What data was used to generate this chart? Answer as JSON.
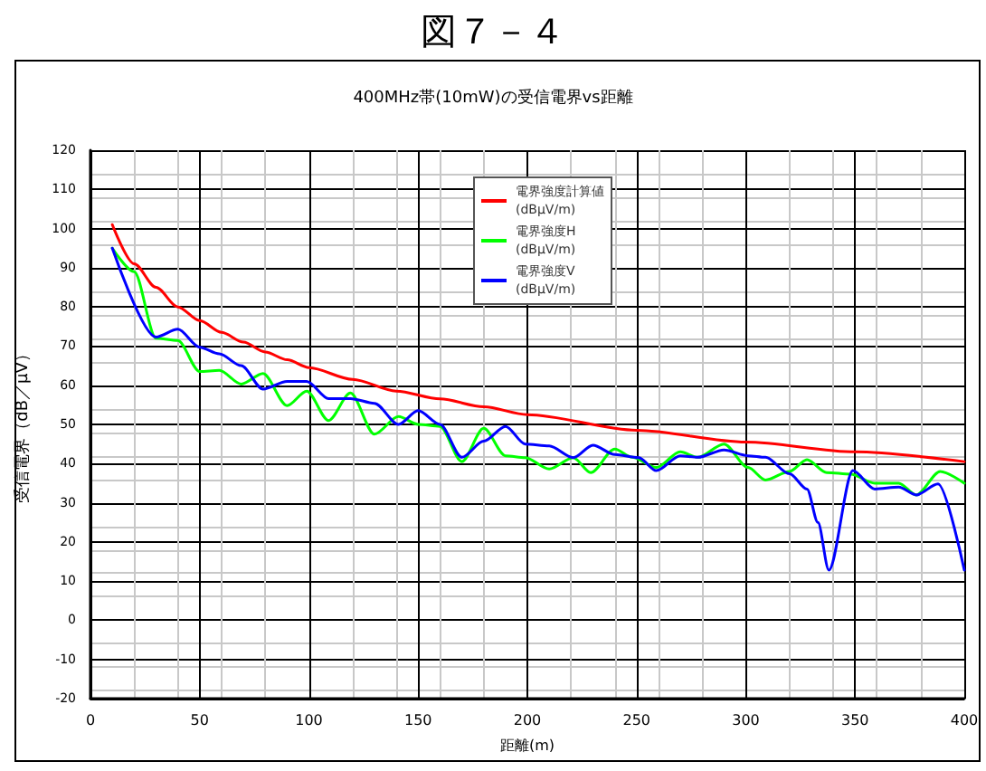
{
  "chart_data": {
    "type": "line",
    "title": "図７－４",
    "subtitle": "400MHz帯(10mW)の受信電界vs距離",
    "xlabel": "距離(m)",
    "ylabel": "受信電界（dB／μV）",
    "xlim": [
      0,
      400
    ],
    "xticks": [
      0,
      50,
      100,
      150,
      200,
      250,
      300,
      350,
      400
    ],
    "ylim": [
      -20,
      120
    ],
    "yticks": [
      -20,
      -10,
      0,
      10,
      20,
      30,
      40,
      50,
      60,
      70,
      80,
      90,
      100,
      110,
      120
    ],
    "grid": true,
    "legend": "top",
    "marker": "none",
    "line_style": "solid",
    "series": [
      {
        "name": "電界強度計算値\n(dBμV/m)",
        "color": "#ff0000",
        "x": [
          10,
          20,
          30,
          40,
          50,
          60,
          70,
          80,
          90,
          100,
          120,
          140,
          160,
          180,
          200,
          250,
          300,
          350,
          400
        ],
        "values": [
          101,
          91,
          85,
          80,
          76.5,
          73.5,
          71,
          68.5,
          66.5,
          64.5,
          61.5,
          58.5,
          56.5,
          54.5,
          52.5,
          48.5,
          45.5,
          43,
          40.5
        ]
      },
      {
        "name": "電界強度H\n(dBμV/m)",
        "color": "#00ff00",
        "x": [
          10,
          20,
          30,
          40,
          50,
          59,
          69,
          79,
          90,
          99,
          109,
          119,
          130,
          141,
          150,
          160,
          170,
          180,
          190,
          199,
          210,
          221,
          229,
          240,
          248,
          259,
          270,
          278,
          290,
          301,
          309,
          320,
          328,
          337,
          348,
          359,
          370,
          378,
          389,
          400
        ],
        "values": [
          95,
          89,
          72,
          71.4,
          63.5,
          63.8,
          60.3,
          63,
          54.8,
          58.5,
          51,
          58,
          47.5,
          52,
          50,
          49.5,
          40.5,
          49,
          42,
          41.5,
          38.6,
          41.5,
          37.7,
          43.7,
          41.6,
          39,
          43,
          41.6,
          45,
          39,
          35.8,
          38,
          41,
          37.7,
          37.3,
          35,
          35,
          32,
          38,
          35
        ]
      },
      {
        "name": "電界強度V\n(dBμV/m)",
        "color": "#0000ff",
        "x": [
          10,
          30,
          40,
          50,
          59,
          69,
          79,
          90,
          99,
          109,
          119,
          130,
          141,
          150,
          160,
          170,
          180,
          190,
          199,
          210,
          221,
          230,
          240,
          251,
          259,
          270,
          278,
          290,
          301,
          309,
          320,
          328,
          333,
          338,
          349,
          359,
          370,
          378,
          388,
          400
        ],
        "values": [
          95,
          72.3,
          74.3,
          69.7,
          68,
          65,
          59,
          61,
          61,
          56.6,
          56.6,
          55.4,
          50,
          53.5,
          50,
          41.6,
          45.7,
          49.5,
          45,
          44.5,
          41.5,
          44.7,
          42.3,
          41.5,
          38.2,
          42,
          41.6,
          43.5,
          42,
          41.6,
          37.4,
          33.5,
          25,
          12.8,
          38.2,
          33.5,
          34,
          32,
          34.8,
          12.8
        ]
      }
    ]
  }
}
